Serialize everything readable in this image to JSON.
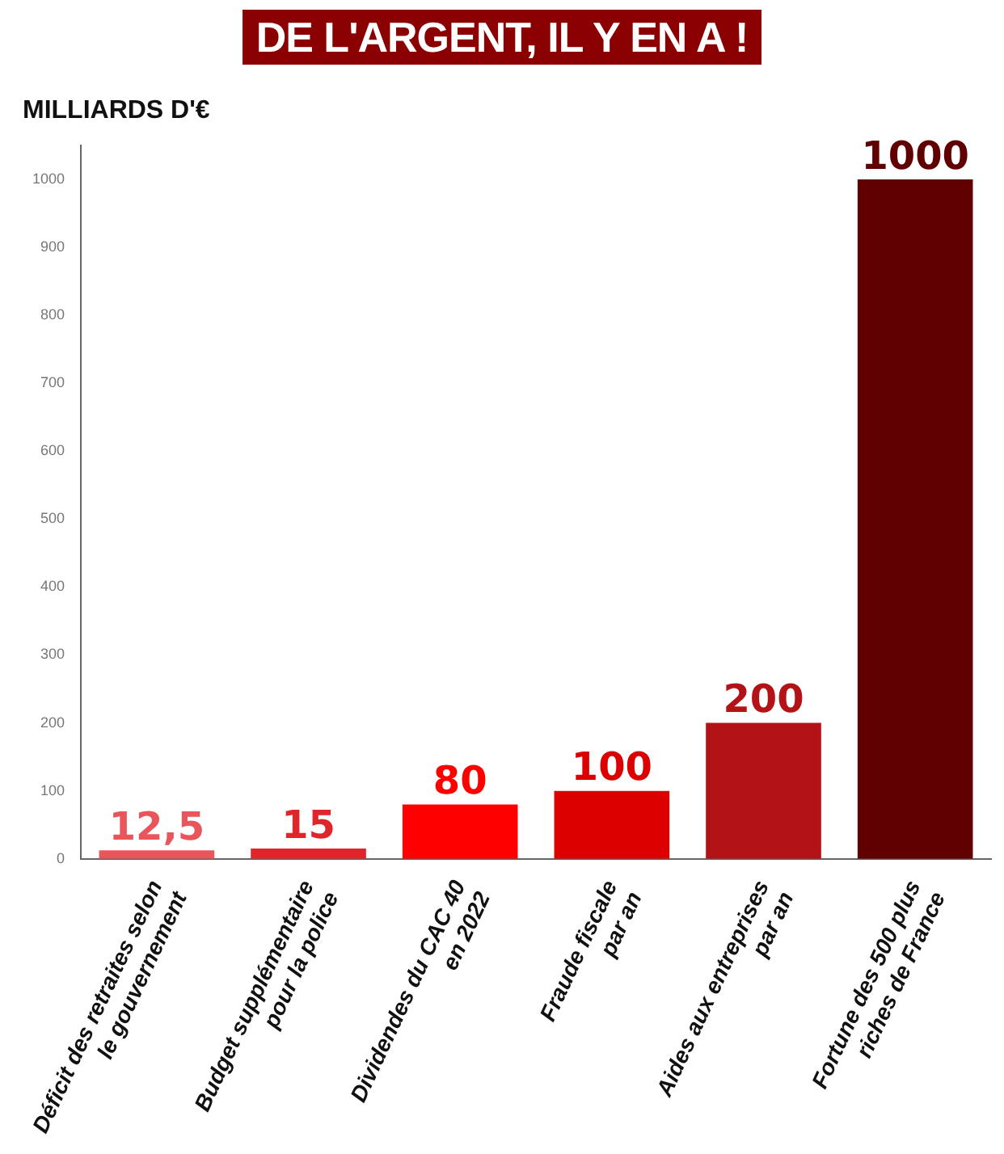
{
  "chart_data": {
    "type": "bar",
    "title": "DE L'ARGENT, IL Y EN A !",
    "ylabel": "MILLIARDS D'€",
    "categories": [
      "Déficit des retraites selon\nle gouvernement",
      "Budget supplémentaire\npour la police",
      "Dividendes du CAC 40\nen 2022",
      "Fraude fiscale\npar an",
      "Aides aux entreprises\npar an",
      "Fortune des 500 plus\nriches de France"
    ],
    "values": [
      12.5,
      15,
      80,
      100,
      200,
      1000
    ],
    "colors": [
      "#e8555a",
      "#e0262b",
      "#ff0000",
      "#dd0000",
      "#b31217",
      "#600000"
    ],
    "value_labels": [
      "12,5",
      "15",
      "80",
      "100",
      "200",
      "1000"
    ],
    "ylim": [
      0,
      1050
    ],
    "yticks": [
      0,
      100,
      200,
      300,
      400,
      500,
      600,
      700,
      800,
      900,
      1000
    ],
    "grid": false,
    "legend": false
  }
}
